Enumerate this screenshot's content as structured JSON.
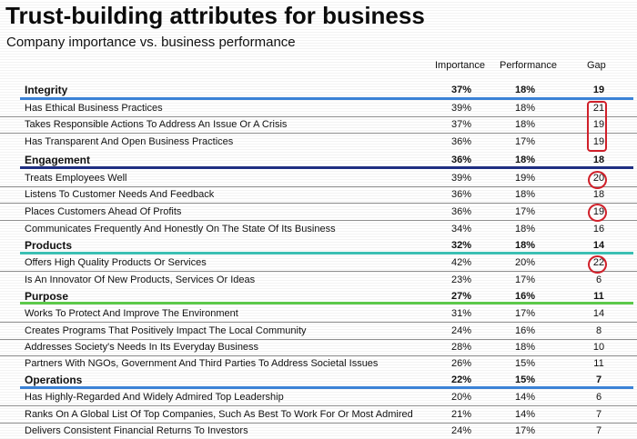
{
  "title": "Trust-building attributes for business",
  "subtitle": "Company importance vs. business performance",
  "columns": {
    "importance": "Importance",
    "performance": "Performance",
    "gap": "Gap"
  },
  "colors": {
    "integrity": "#3b82d6",
    "engagement": "#1f2f82",
    "products": "#3bbfb3",
    "purpose": "#5cc94a",
    "operations": "#3b82d6",
    "highlight": "#d0202a"
  },
  "groups": [
    {
      "name": "Integrity",
      "importance": "37%",
      "performance": "18%",
      "gap": "19",
      "items": [
        {
          "label": "Has Ethical Business Practices",
          "importance": "39%",
          "performance": "18%",
          "gap": "21"
        },
        {
          "label": "Takes Responsible Actions To Address An Issue Or A Crisis",
          "importance": "37%",
          "performance": "18%",
          "gap": "19"
        },
        {
          "label": "Has Transparent And Open Business Practices",
          "importance": "36%",
          "performance": "17%",
          "gap": "19"
        }
      ]
    },
    {
      "name": "Engagement",
      "importance": "36%",
      "performance": "18%",
      "gap": "18",
      "items": [
        {
          "label": "Treats Employees Well",
          "importance": "39%",
          "performance": "19%",
          "gap": "20"
        },
        {
          "label": "Listens To Customer Needs And Feedback",
          "importance": "36%",
          "performance": "18%",
          "gap": "18"
        },
        {
          "label": "Places Customers Ahead Of Profits",
          "importance": "36%",
          "performance": "17%",
          "gap": "19"
        },
        {
          "label": "Communicates Frequently And Honestly On The State Of Its Business",
          "importance": "34%",
          "performance": "18%",
          "gap": "16"
        }
      ]
    },
    {
      "name": "Products",
      "importance": "32%",
      "performance": "18%",
      "gap": "14",
      "items": [
        {
          "label": "Offers High Quality Products Or Services",
          "importance": "42%",
          "performance": "20%",
          "gap": "22"
        },
        {
          "label": "Is An Innovator Of New Products, Services Or Ideas",
          "importance": "23%",
          "performance": "17%",
          "gap": "6"
        }
      ]
    },
    {
      "name": "Purpose",
      "importance": "27%",
      "performance": "16%",
      "gap": "11",
      "items": [
        {
          "label": "Works To Protect And Improve The Environment",
          "importance": "31%",
          "performance": "17%",
          "gap": "14"
        },
        {
          "label": "Creates Programs That Positively Impact The Local Community",
          "importance": "24%",
          "performance": "16%",
          "gap": "8"
        },
        {
          "label": "Addresses Society's Needs In Its Everyday Business",
          "importance": "28%",
          "performance": "18%",
          "gap": "10"
        },
        {
          "label": "Partners With NGOs, Government And Third Parties To Address Societal Issues",
          "importance": "26%",
          "performance": "15%",
          "gap": "11"
        }
      ]
    },
    {
      "name": "Operations",
      "importance": "22%",
      "performance": "15%",
      "gap": "7",
      "items": [
        {
          "label": "Has Highly-Regarded And Widely Admired Top Leadership",
          "importance": "20%",
          "performance": "14%",
          "gap": "6"
        },
        {
          "label": "Ranks On A Global List Of Top Companies, Such As Best To Work For Or Most Admired",
          "importance": "21%",
          "performance": "14%",
          "gap": "7"
        },
        {
          "label": "Delivers Consistent Financial Returns To Investors",
          "importance": "24%",
          "performance": "17%",
          "gap": "7"
        }
      ]
    }
  ]
}
